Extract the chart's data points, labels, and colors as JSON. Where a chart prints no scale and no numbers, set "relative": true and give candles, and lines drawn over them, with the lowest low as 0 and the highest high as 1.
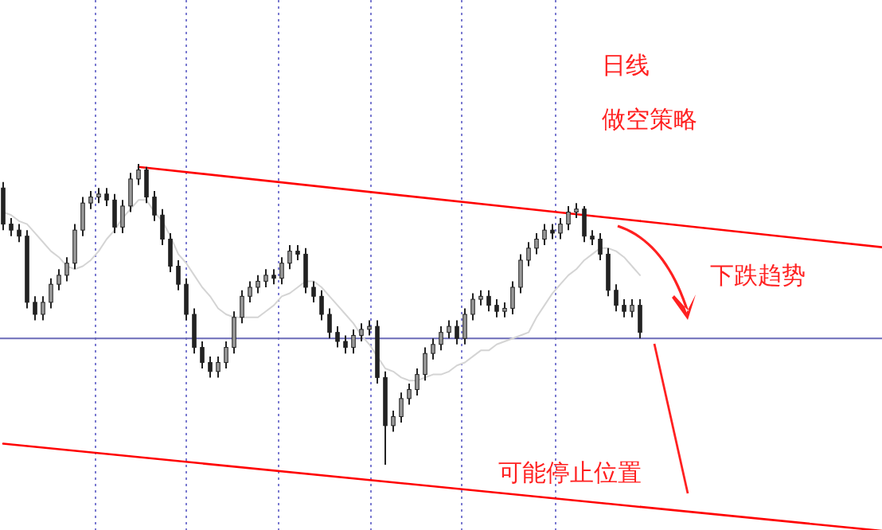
{
  "chart_data": {
    "type": "candlestick",
    "relative": true,
    "color": "#222222",
    "categories": [
      null,
      null,
      null,
      null,
      null,
      null,
      null,
      null,
      null,
      null,
      null,
      null,
      null,
      null,
      null,
      null,
      null,
      null,
      null,
      null,
      null,
      null,
      null,
      null,
      null,
      null,
      null,
      null,
      null,
      null,
      null,
      null,
      null,
      null,
      null,
      null,
      null,
      null,
      null,
      null,
      null,
      null,
      null,
      null,
      null,
      null,
      null,
      null,
      null,
      null,
      null,
      null,
      null,
      null,
      null,
      null,
      null,
      null,
      null,
      null,
      null,
      null,
      null,
      null,
      null,
      null,
      null,
      null,
      null,
      null,
      null,
      null,
      null,
      null,
      null,
      null,
      null,
      null,
      null,
      null,
      null
    ],
    "ohlc": [
      [
        0.92,
        0.94,
        0.78,
        0.8
      ],
      [
        0.8,
        0.82,
        0.76,
        0.78
      ],
      [
        0.78,
        0.8,
        0.74,
        0.76
      ],
      [
        0.76,
        0.78,
        0.52,
        0.54
      ],
      [
        0.54,
        0.56,
        0.48,
        0.5
      ],
      [
        0.5,
        0.56,
        0.48,
        0.54
      ],
      [
        0.54,
        0.62,
        0.52,
        0.6
      ],
      [
        0.6,
        0.65,
        0.58,
        0.63
      ],
      [
        0.63,
        0.69,
        0.61,
        0.67
      ],
      [
        0.67,
        0.8,
        0.65,
        0.78
      ],
      [
        0.78,
        0.89,
        0.76,
        0.87
      ],
      [
        0.87,
        0.91,
        0.85,
        0.89
      ],
      [
        0.89,
        0.92,
        0.87,
        0.9
      ],
      [
        0.9,
        0.92,
        0.86,
        0.88
      ],
      [
        0.88,
        0.9,
        0.77,
        0.79
      ],
      [
        0.79,
        0.88,
        0.77,
        0.86
      ],
      [
        0.86,
        0.97,
        0.84,
        0.95
      ],
      [
        0.95,
        1.0,
        0.93,
        0.98
      ],
      [
        0.98,
        0.99,
        0.87,
        0.89
      ],
      [
        0.89,
        0.91,
        0.81,
        0.83
      ],
      [
        0.83,
        0.85,
        0.73,
        0.75
      ],
      [
        0.75,
        0.77,
        0.64,
        0.66
      ],
      [
        0.66,
        0.68,
        0.58,
        0.6
      ],
      [
        0.6,
        0.62,
        0.48,
        0.5
      ],
      [
        0.5,
        0.52,
        0.37,
        0.39
      ],
      [
        0.39,
        0.41,
        0.32,
        0.34
      ],
      [
        0.34,
        0.36,
        0.29,
        0.31
      ],
      [
        0.31,
        0.36,
        0.29,
        0.34
      ],
      [
        0.34,
        0.41,
        0.32,
        0.39
      ],
      [
        0.39,
        0.51,
        0.37,
        0.49
      ],
      [
        0.49,
        0.58,
        0.47,
        0.56
      ],
      [
        0.56,
        0.61,
        0.54,
        0.59
      ],
      [
        0.59,
        0.63,
        0.57,
        0.61
      ],
      [
        0.61,
        0.65,
        0.59,
        0.63
      ],
      [
        0.63,
        0.65,
        0.6,
        0.62
      ],
      [
        0.62,
        0.69,
        0.6,
        0.67
      ],
      [
        0.67,
        0.73,
        0.65,
        0.71
      ],
      [
        0.71,
        0.73,
        0.68,
        0.7
      ],
      [
        0.7,
        0.72,
        0.57,
        0.59
      ],
      [
        0.59,
        0.61,
        0.54,
        0.56
      ],
      [
        0.56,
        0.58,
        0.48,
        0.5
      ],
      [
        0.5,
        0.52,
        0.42,
        0.44
      ],
      [
        0.44,
        0.46,
        0.39,
        0.41
      ],
      [
        0.41,
        0.43,
        0.37,
        0.39
      ],
      [
        0.39,
        0.45,
        0.37,
        0.43
      ],
      [
        0.43,
        0.47,
        0.41,
        0.45
      ],
      [
        0.45,
        0.48,
        0.43,
        0.46
      ],
      [
        0.46,
        0.48,
        0.27,
        0.29
      ],
      [
        0.29,
        0.31,
        0,
        0.13
      ],
      [
        0.13,
        0.18,
        0.11,
        0.16
      ],
      [
        0.16,
        0.24,
        0.14,
        0.22
      ],
      [
        0.22,
        0.27,
        0.2,
        0.25
      ],
      [
        0.25,
        0.32,
        0.23,
        0.3
      ],
      [
        0.3,
        0.39,
        0.28,
        0.37
      ],
      [
        0.37,
        0.42,
        0.35,
        0.4
      ],
      [
        0.4,
        0.46,
        0.38,
        0.44
      ],
      [
        0.44,
        0.48,
        0.42,
        0.46
      ],
      [
        0.46,
        0.48,
        0.4,
        0.42
      ],
      [
        0.42,
        0.52,
        0.4,
        0.5
      ],
      [
        0.5,
        0.57,
        0.48,
        0.55
      ],
      [
        0.55,
        0.58,
        0.53,
        0.56
      ],
      [
        0.56,
        0.58,
        0.51,
        0.53
      ],
      [
        0.53,
        0.55,
        0.49,
        0.51
      ],
      [
        0.51,
        0.54,
        0.49,
        0.52
      ],
      [
        0.52,
        0.61,
        0.5,
        0.59
      ],
      [
        0.59,
        0.7,
        0.57,
        0.68
      ],
      [
        0.68,
        0.74,
        0.66,
        0.72
      ],
      [
        0.72,
        0.77,
        0.7,
        0.75
      ],
      [
        0.75,
        0.8,
        0.73,
        0.78
      ],
      [
        0.78,
        0.8,
        0.75,
        0.77
      ],
      [
        0.77,
        0.82,
        0.75,
        0.8
      ],
      [
        0.8,
        0.86,
        0.78,
        0.84
      ],
      [
        0.84,
        0.87,
        0.82,
        0.85
      ],
      [
        0.85,
        0.86,
        0.74,
        0.76
      ],
      [
        0.76,
        0.78,
        0.73,
        0.75
      ],
      [
        0.75,
        0.77,
        0.68,
        0.7
      ],
      [
        0.7,
        0.72,
        0.56,
        0.58
      ],
      [
        0.58,
        0.6,
        0.51,
        0.53
      ],
      [
        0.53,
        0.55,
        0.49,
        0.51
      ],
      [
        0.51,
        0.55,
        0.49,
        0.53
      ],
      [
        0.53,
        0.55,
        0.42,
        0.44
      ]
    ],
    "series": [
      {
        "type": "line",
        "color": "#d4d4d4",
        "values": [
          0.84,
          0.83,
          0.81,
          0.8,
          0.77,
          0.74,
          0.71,
          0.69,
          0.66,
          0.65,
          0.66,
          0.68,
          0.71,
          0.75,
          0.78,
          0.82,
          0.85,
          0.88,
          0.88,
          0.84,
          0.81,
          0.76,
          0.7,
          0.67,
          0.63,
          0.59,
          0.56,
          0.52,
          0.5,
          0.49,
          0.49,
          0.49,
          0.49,
          0.51,
          0.53,
          0.56,
          0.57,
          0.59,
          0.61,
          0.61,
          0.59,
          0.56,
          0.53,
          0.5,
          0.47,
          0.43,
          0.4,
          0.36,
          0.32,
          0.31,
          0.29,
          0.28,
          0.28,
          0.29,
          0.3,
          0.3,
          0.31,
          0.33,
          0.34,
          0.36,
          0.38,
          0.38,
          0.4,
          0.41,
          0.42,
          0.43,
          0.44,
          0.49,
          0.53,
          0.57,
          0.6,
          0.63,
          0.65,
          0.68,
          0.7,
          0.72,
          0.72,
          0.71,
          0.69,
          0.66,
          0.63
        ]
      },
      {
        "type": "line",
        "color": "#ff0000",
        "values": [
          null,
          null,
          null,
          null,
          null,
          null,
          null,
          null,
          null,
          null,
          null,
          null,
          null,
          null,
          null,
          null,
          null,
          0.99,
          null,
          null,
          null,
          null,
          null,
          null,
          null,
          null,
          null,
          null,
          null,
          null,
          null,
          null,
          null,
          null,
          null,
          null,
          null,
          null,
          null,
          null,
          null,
          null,
          null,
          null,
          null,
          null,
          null,
          null,
          null,
          null,
          null,
          null,
          null,
          null,
          null,
          null,
          null,
          null,
          null,
          null,
          null,
          null,
          null,
          null,
          null,
          null,
          null,
          null,
          null,
          null,
          null,
          null,
          null,
          null,
          null,
          null,
          null,
          null,
          null,
          null,
          0.81
        ]
      },
      {
        "type": "line",
        "color": "#ff0000",
        "values": [
          0.07,
          null,
          null,
          null,
          null,
          null,
          null,
          null,
          null,
          null,
          null,
          null,
          null,
          null,
          null,
          null,
          null,
          null,
          null,
          null,
          null,
          null,
          null,
          null,
          null,
          null,
          null,
          null,
          null,
          null,
          null,
          null,
          null,
          null,
          null,
          null,
          null,
          null,
          null,
          null,
          null,
          null,
          null,
          null,
          null,
          null,
          null,
          null,
          null,
          null,
          null,
          null,
          null,
          null,
          null,
          null,
          null,
          null,
          null,
          null,
          null,
          null,
          null,
          null,
          null,
          null,
          null,
          null,
          null,
          null,
          null,
          null,
          null,
          null,
          null,
          null,
          null,
          null,
          null,
          null,
          -0.14
        ]
      }
    ],
    "ref_lines": [
      {
        "axis": "y",
        "value": 0.42,
        "color": "#6b6bb8",
        "line_style": "solid"
      }
    ],
    "annotations": [
      "日线",
      "做空策略",
      "下跌趋势",
      "可能停止位置"
    ]
  }
}
